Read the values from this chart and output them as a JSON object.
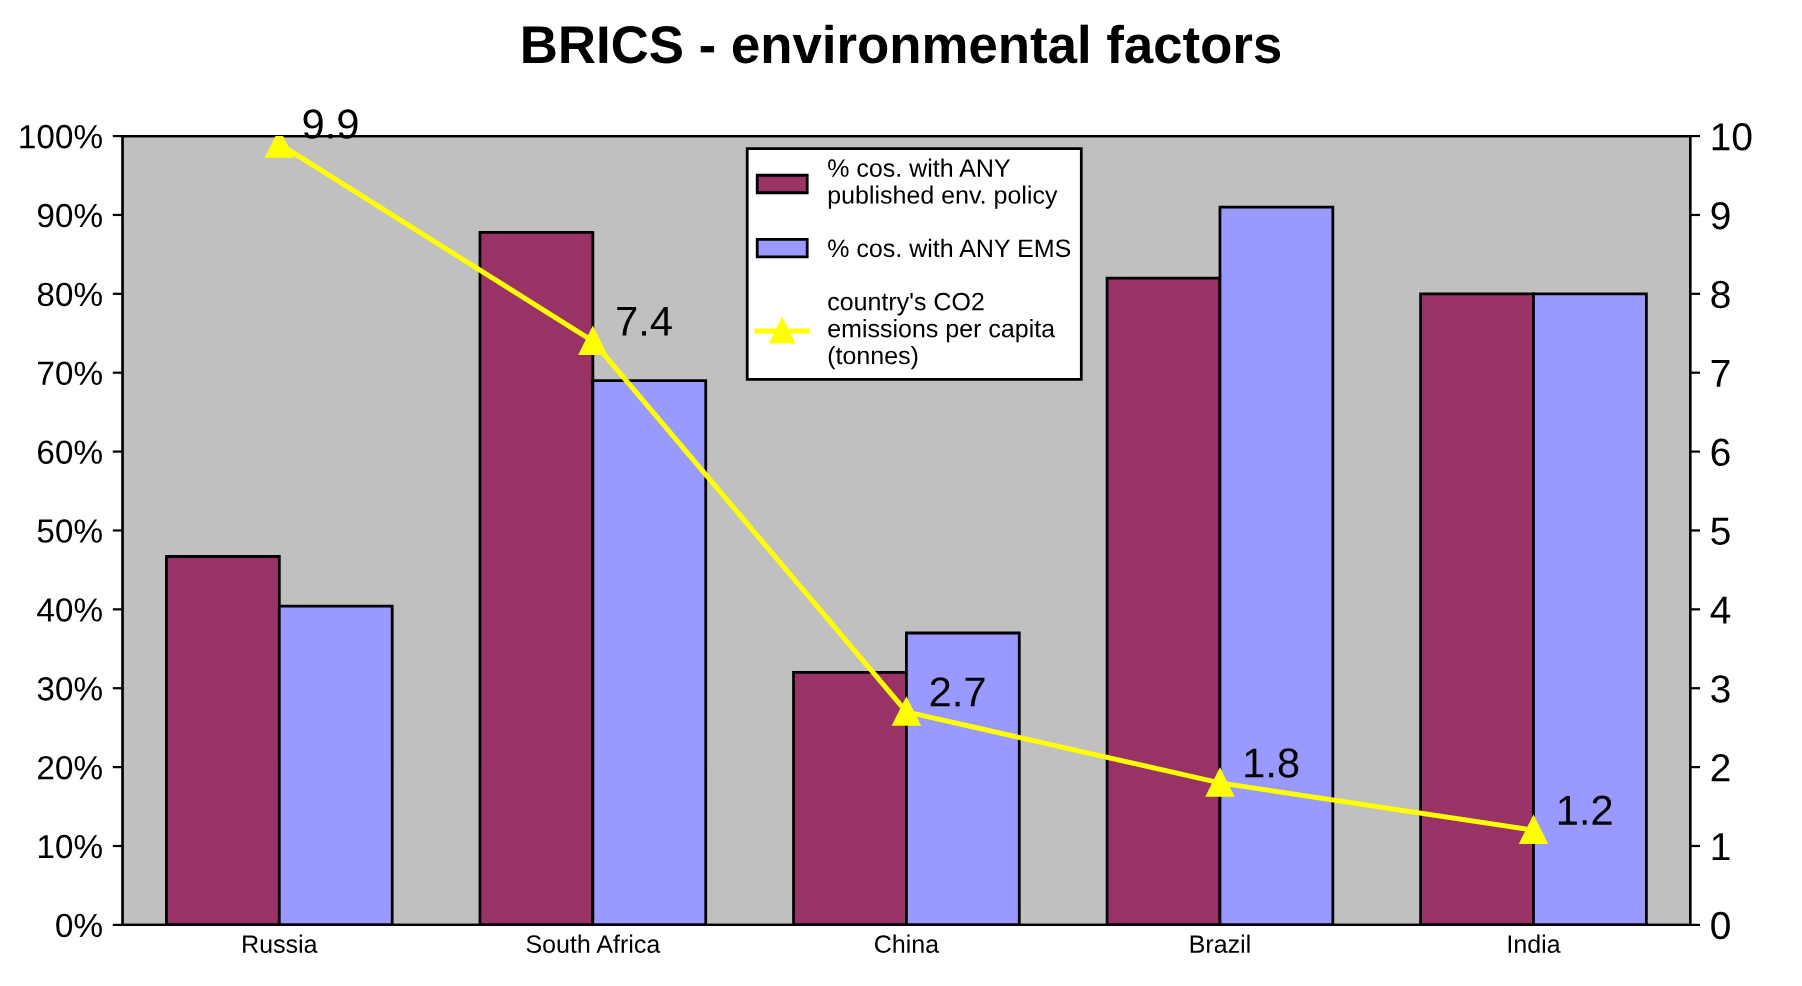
{
  "chart_data": {
    "type": "bar",
    "title": "BRICS - environmental factors",
    "categories": [
      "Russia",
      "South Africa",
      "China",
      "Brazil",
      "India"
    ],
    "series": [
      {
        "name": "% cos. with ANY published env. policy",
        "color": "#993366",
        "values": [
          0.467,
          0.878,
          0.32,
          0.82,
          0.8
        ]
      },
      {
        "name": "% cos. with ANY EMS",
        "color": "#9999ff",
        "values": [
          0.404,
          0.69,
          0.37,
          0.91,
          0.8
        ]
      },
      {
        "name": "country's CO2 emissions per capita (tonnes)",
        "color": "#ffff00",
        "type": "line",
        "axis": "y2",
        "marker": "triangle",
        "values": [
          9.9,
          7.4,
          2.7,
          1.8,
          1.2
        ],
        "value_labels": [
          "9.9",
          "7.4",
          "2.7",
          "1.8",
          "1.2"
        ]
      }
    ],
    "ylim": [
      0,
      1
    ],
    "yticks": [
      {
        "value": 0,
        "label": "0%"
      },
      {
        "value": 0.1,
        "label": "10%"
      },
      {
        "value": 0.2,
        "label": "20%"
      },
      {
        "value": 0.3,
        "label": "30%"
      },
      {
        "value": 0.4,
        "label": "40%"
      },
      {
        "value": 0.5,
        "label": "50%"
      },
      {
        "value": 0.6,
        "label": "60%"
      },
      {
        "value": 0.7,
        "label": "70%"
      },
      {
        "value": 0.8,
        "label": "80%"
      },
      {
        "value": 0.9,
        "label": "90%"
      },
      {
        "value": 1,
        "label": "100%"
      }
    ],
    "y2lim": [
      0,
      10
    ],
    "y2ticks": [
      0,
      1,
      2,
      3,
      4,
      5,
      6,
      7,
      8,
      9,
      10
    ],
    "grid": false,
    "legend": "top"
  }
}
